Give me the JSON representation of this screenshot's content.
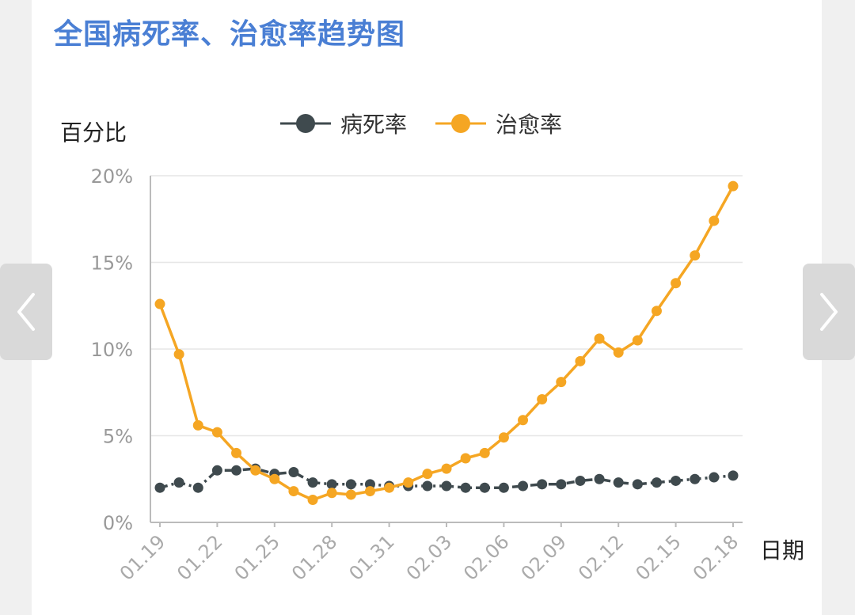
{
  "page": {
    "title": "全国病死率、治愈率趋势图"
  },
  "chart_data": {
    "type": "line",
    "title": "全国病死率、治愈率趋势图",
    "ylabel": "百分比",
    "xlabel": "日期",
    "ylim": [
      0,
      20
    ],
    "y_unit": "%",
    "y_ticks": [
      "0%",
      "5%",
      "10%",
      "15%",
      "20%"
    ],
    "grid": true,
    "legend_position": "top",
    "x_tick_labels": [
      "01.19",
      "01.22",
      "01.25",
      "01.28",
      "01.31",
      "02.03",
      "02.06",
      "02.09",
      "02.12",
      "02.15",
      "02.18"
    ],
    "x": [
      "01.19",
      "01.20",
      "01.21",
      "01.22",
      "01.23",
      "01.24",
      "01.25",
      "01.26",
      "01.27",
      "01.28",
      "01.29",
      "01.30",
      "01.31",
      "02.01",
      "02.02",
      "02.03",
      "02.04",
      "02.05",
      "02.06",
      "02.07",
      "02.08",
      "02.09",
      "02.10",
      "02.11",
      "02.12",
      "02.13",
      "02.14",
      "02.15",
      "02.16",
      "02.17",
      "02.18"
    ],
    "series": [
      {
        "name": "病死率",
        "color": "#3f4a4e",
        "style": "dash-dot",
        "values": [
          2.0,
          2.3,
          2.0,
          3.0,
          3.0,
          3.1,
          2.8,
          2.9,
          2.3,
          2.2,
          2.2,
          2.2,
          2.1,
          2.1,
          2.1,
          2.1,
          2.0,
          2.0,
          2.0,
          2.1,
          2.2,
          2.2,
          2.4,
          2.5,
          2.3,
          2.2,
          2.3,
          2.4,
          2.5,
          2.6,
          2.7
        ]
      },
      {
        "name": "治愈率",
        "color": "#f5a623",
        "style": "solid",
        "values": [
          12.6,
          9.7,
          5.6,
          5.2,
          4.0,
          3.0,
          2.5,
          1.8,
          1.3,
          1.7,
          1.6,
          1.8,
          2.0,
          2.3,
          2.8,
          3.1,
          3.7,
          4.0,
          4.9,
          5.9,
          7.1,
          8.1,
          9.3,
          10.6,
          9.8,
          10.5,
          12.2,
          13.8,
          15.4,
          17.4,
          19.4
        ]
      }
    ]
  }
}
